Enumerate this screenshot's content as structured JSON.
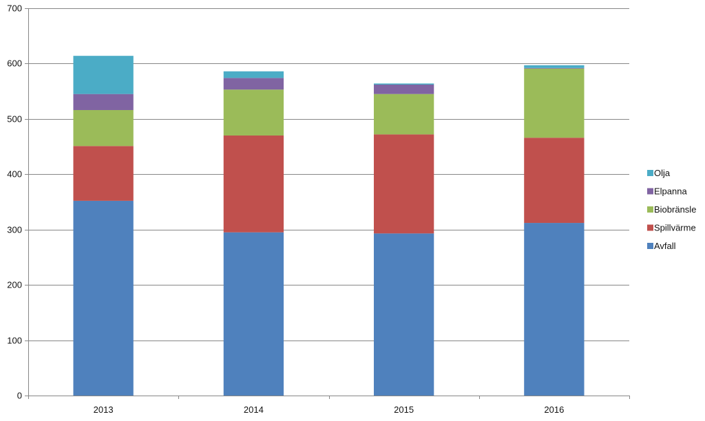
{
  "chart_data": {
    "type": "bar",
    "stacked": true,
    "title": "",
    "xlabel": "",
    "ylabel": "",
    "ylim": [
      0,
      700
    ],
    "yticks": [
      0,
      100,
      200,
      300,
      400,
      500,
      600,
      700
    ],
    "grid": true,
    "legend_position": "right",
    "categories": [
      "2013",
      "2014",
      "2015",
      "2016"
    ],
    "series": [
      {
        "name": "Avfall",
        "color": "#4F81BD",
        "values": [
          352,
          295,
          293,
          312
        ]
      },
      {
        "name": "Spillvärme",
        "color": "#C0504D",
        "values": [
          99,
          175,
          179,
          154
        ]
      },
      {
        "name": "Biobränsle",
        "color": "#9BBB59",
        "values": [
          65,
          83,
          73,
          125
        ]
      },
      {
        "name": "Elpanna",
        "color": "#8064A2",
        "values": [
          29,
          21,
          17,
          1
        ]
      },
      {
        "name": "Olja",
        "color": "#4BACC6",
        "values": [
          69,
          12,
          2,
          5
        ]
      }
    ],
    "legend_order": [
      "Olja",
      "Elpanna",
      "Biobränsle",
      "Spillvärme",
      "Avfall"
    ]
  }
}
